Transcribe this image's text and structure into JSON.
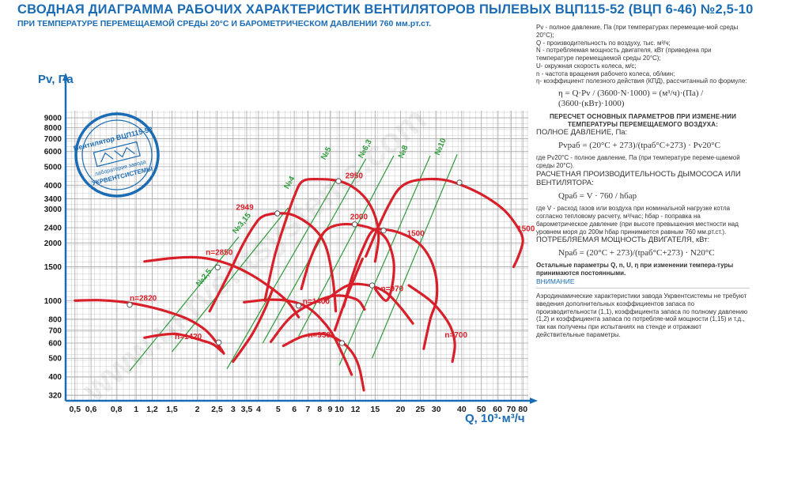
{
  "title": "СВОДНАЯ  ДИАГРАММА РАБОЧИХ ХАРАКТЕРИСТИК ВЕНТИЛЯТОРОВ ПЫЛЕВЫХ ВЦП115-52 (ВЦП 6-46) №2,5-10",
  "subtitle": "ПРИ ТЕМПЕРАТУРЕ ПЕРЕМЕЩАЕМОЙ СРЕДЫ 20°С И БАРОМЕТРИЧЕСКОМ ДАВЛЕНИИ 760 мм.рт.ст.",
  "stamp": {
    "line1": "Вентилятор ВЦП115-52",
    "line2": "лаборатория завода",
    "line3": "УКРВЕНТСИСТЕМЫ"
  },
  "watermark": "www.ukrventsystems.com",
  "chart_data": {
    "type": "line",
    "x_scale": "log",
    "y_scale": "log",
    "xlabel": "Q, 10³·м³/ч",
    "ylabel": "Pv, Па",
    "xlim": [
      0.45,
      85
    ],
    "ylim": [
      300,
      9800
    ],
    "x_ticks": [
      0.5,
      0.6,
      0.8,
      1,
      1.2,
      1.5,
      2,
      2.5,
      3,
      3.5,
      4,
      5,
      6,
      7,
      8,
      9,
      10,
      12,
      15,
      20,
      25,
      30,
      40,
      50,
      60,
      70,
      80
    ],
    "x_tick_labels": [
      "0,5",
      "0,6",
      "0,8",
      "1",
      "1,2",
      "1,5",
      "2",
      "2,5",
      "3",
      "3,5",
      "4",
      "5",
      "6",
      "7",
      "8",
      "9",
      "10",
      "12",
      "15",
      "20",
      "25",
      "30",
      "40",
      "50",
      "60",
      "70",
      "80"
    ],
    "y_ticks": [
      320,
      400,
      500,
      600,
      700,
      800,
      1000,
      1500,
      2000,
      2400,
      3000,
      3400,
      4000,
      5000,
      6000,
      7000,
      8000,
      9000
    ],
    "grid": true,
    "fans": [
      {
        "label": "№2,5",
        "line_start": [
          0.93,
          430
        ],
        "line_end": [
          3.2,
          2150
        ],
        "label_at": [
          2.05,
          1180
        ],
        "curves": [
          {
            "label": "n=2820",
            "label_at": [
              0.93,
              1000
            ],
            "points": [
              [
                0.5,
                1000
              ],
              [
                0.65,
                1005
              ],
              [
                0.85,
                985
              ],
              [
                1.1,
                940
              ],
              [
                1.4,
                880
              ],
              [
                1.8,
                800
              ],
              [
                2.2,
                700
              ],
              [
                2.5,
                600
              ],
              [
                2.7,
                530
              ]
            ]
          },
          {
            "label": "n=1420",
            "label_at": [
              1.55,
              630
            ],
            "points": [
              [
                1.1,
                640
              ],
              [
                1.3,
                660
              ],
              [
                1.55,
                670
              ],
              [
                1.8,
                650
              ],
              [
                2.1,
                620
              ],
              [
                2.4,
                590
              ],
              [
                2.65,
                540
              ]
            ]
          }
        ]
      },
      {
        "label": "№3,15",
        "line_start": [
          1.5,
          540
        ],
        "line_end": [
          5.6,
          3050
        ],
        "label_at": [
          3.1,
          2220
        ],
        "curves": [
          {
            "label": "n=2850",
            "label_at": [
              2.2,
              1730
            ],
            "points": [
              [
                1.1,
                1600
              ],
              [
                1.5,
                1665
              ],
              [
                2.0,
                1680
              ],
              [
                2.6,
                1600
              ],
              [
                3.3,
                1450
              ],
              [
                4.2,
                1250
              ],
              [
                5.5,
                1000
              ],
              [
                6.3,
                820
              ]
            ]
          },
          {
            "label": "2949",
            "label_at": [
              3.1,
              2980
            ],
            "points": [
              [
                2.3,
                880
              ],
              [
                2.8,
                1320
              ],
              [
                3.3,
                1900
              ],
              [
                3.8,
                2450
              ],
              [
                4.2,
                2750
              ],
              [
                5.0,
                2850
              ],
              [
                6.0,
                2780
              ],
              [
                7.5,
                2380
              ],
              [
                8.6,
                1900
              ],
              [
                9.3,
                1280
              ],
              [
                9.6,
                880
              ]
            ]
          }
        ]
      },
      {
        "label": "№4",
        "line_start": [
          2.8,
          440
        ],
        "line_end": [
          9.7,
          4300
        ],
        "label_at": [
          5.6,
          3800
        ],
        "curves": [
          {
            "label": "n=1400",
            "label_at": [
              6.6,
              960
            ],
            "points": [
              [
                3.4,
                980
              ],
              [
                4.5,
                1010
              ],
              [
                5.8,
                990
              ],
              [
                7.2,
                900
              ],
              [
                9.0,
                700
              ],
              [
                10.5,
                510
              ],
              [
                11.5,
                410
              ]
            ]
          },
          {
            "label": "",
            "label_at": [
              0,
              0
            ],
            "points": [
              [
                3.0,
                480
              ],
              [
                3.7,
                660
              ],
              [
                4.3,
                900
              ],
              [
                4.7,
                1150
              ]
            ]
          }
        ]
      },
      {
        "label": "№5",
        "line_start": [
          4.2,
          600
        ],
        "line_end": [
          13.5,
          5500
        ],
        "label_at": [
          8.5,
          5400
        ],
        "curves": [
          {
            "label": "2950",
            "label_at": [
              10.7,
              4350
            ],
            "points": [
              [
                4.3,
                1000
              ],
              [
                4.8,
                1700
              ],
              [
                5.4,
                2550
              ],
              [
                6.0,
                3500
              ],
              [
                6.6,
                4200
              ],
              [
                8.0,
                4300
              ],
              [
                9.8,
                4220
              ],
              [
                11.5,
                3950
              ],
              [
                13.5,
                3400
              ],
              [
                15.0,
                2750
              ],
              [
                15.6,
                2150
              ],
              [
                15.0,
                1600
              ]
            ]
          },
          {
            "label": "n=950",
            "label_at": [
              7.0,
              640
            ],
            "points": [
              [
                5.3,
                580
              ],
              [
                6.6,
                650
              ],
              [
                8.3,
                670
              ],
              [
                10.0,
                620
              ],
              [
                11.5,
                540
              ],
              [
                12.5,
                450
              ],
              [
                13.2,
                340
              ]
            ]
          },
          {
            "label": "",
            "label_at": [
              0,
              0
            ],
            "points": [
              [
                4.6,
                610
              ],
              [
                6.0,
                850
              ],
              [
                9.0,
                1050
              ],
              [
                12.0,
                1020
              ],
              [
                13.3,
                900
              ]
            ]
          }
        ]
      },
      {
        "label": "№6,3",
        "line_start": [
          6.3,
          650
        ],
        "line_end": [
          18.5,
          5700
        ],
        "label_at": [
          13.0,
          5500
        ],
        "curves": [
          {
            "label": "2000",
            "label_at": [
              11.3,
              2650
            ],
            "points": [
              [
                6.5,
                1150
              ],
              [
                7.2,
                1650
              ],
              [
                8.2,
                2200
              ],
              [
                9.4,
                2450
              ],
              [
                11.5,
                2500
              ],
              [
                14.5,
                2370
              ],
              [
                17.0,
                2100
              ],
              [
                18.5,
                1600
              ],
              [
                18.2,
                1200
              ],
              [
                17.0,
                1000
              ],
              [
                15.0,
                1150
              ]
            ]
          },
          {
            "label": "n=970",
            "label_at": [
              16.0,
              1120
            ],
            "points": [
              [
                8.5,
                1000
              ],
              [
                11.0,
                1200
              ],
              [
                14.0,
                1200
              ],
              [
                17.0,
                1100
              ],
              [
                20.0,
                920
              ],
              [
                23.0,
                760
              ]
            ]
          }
        ]
      },
      {
        "label": "№8",
        "line_start": [
          10.0,
          460
        ],
        "line_end": [
          28.0,
          5700
        ],
        "label_at": [
          20.5,
          5500
        ],
        "curves": [
          {
            "label": "1500",
            "label_at": [
              21.5,
              2170
            ],
            "points": [
              [
                10.5,
                930
              ],
              [
                11.6,
                1350
              ],
              [
                13.0,
                1850
              ],
              [
                14.5,
                2300
              ],
              [
                16.5,
                2350
              ],
              [
                20.0,
                2250
              ],
              [
                24.5,
                2000
              ],
              [
                28.0,
                1650
              ],
              [
                30.0,
                1300
              ],
              [
                30.0,
                1000
              ],
              [
                28.0,
                800
              ],
              [
                26.0,
                560
              ]
            ]
          },
          {
            "label": "",
            "label_at": [
              0,
              0
            ],
            "points": [
              [
                9.5,
                700
              ],
              [
                10.7,
                1000
              ],
              [
                12.0,
                1350
              ],
              [
                13.0,
                1650
              ]
            ]
          }
        ]
      },
      {
        "label": "№10",
        "line_start": [
          14.5,
          500
        ],
        "line_end": [
          38.0,
          5800
        ],
        "label_at": [
          31.0,
          5700
        ],
        "curves": [
          {
            "label": "1500",
            "label_at": [
              75.0,
              2300
            ],
            "points": [
              [
                13.5,
                1700
              ],
              [
                15.5,
                2400
              ],
              [
                17.5,
                3150
              ],
              [
                20.0,
                3900
              ],
              [
                24.0,
                4250
              ],
              [
                32.0,
                4280
              ],
              [
                40.0,
                4000
              ],
              [
                52.0,
                3500
              ],
              [
                65.0,
                2950
              ],
              [
                76.0,
                2380
              ],
              [
                80.0,
                2050
              ],
              [
                76.0,
                1700
              ],
              [
                72.0,
                1500
              ]
            ]
          },
          {
            "label": "n=700",
            "label_at": [
              33.0,
              640
            ],
            "points": [
              [
                22.0,
                1200
              ],
              [
                28.0,
                1000
              ],
              [
                33.0,
                820
              ],
              [
                36.0,
                690
              ],
              [
                37.0,
                580
              ],
              [
                36.0,
                480
              ]
            ]
          }
        ]
      }
    ],
    "efficiency_points": [
      [
        0.93,
        950
      ],
      [
        2.55,
        605
      ],
      [
        2.52,
        1490
      ],
      [
        4.95,
        2850
      ],
      [
        6.3,
        940
      ],
      [
        9.9,
        4200
      ],
      [
        10.3,
        600
      ],
      [
        11.9,
        2500
      ],
      [
        14.5,
        1200
      ],
      [
        16.5,
        2320
      ],
      [
        39.0,
        4130
      ]
    ]
  },
  "notes": {
    "defs": [
      "Pv - полное давление, Па (при температурах перемещае-мой среды 20°С);",
      "Q - производительность по воздуху, тыс. м³/ч;",
      "N - потребляемая мощность двигателя, кВт (приведена при температуре перемещаемой среды 20°С);",
      "U- окружная скорость колеса, м/с;",
      "n - частота вращения рабочего колеса, об/мин;",
      "η- коэффициент полезного действия (КПД), рассчитанный по формуле:"
    ],
    "eta_formula": "η = Q·Pv / (3600·N·1000) = (м³/ч)·(Па) / (3600·(кВт)·1000)",
    "recalc_title": "ПЕРЕСЧЕТ ОСНОВНЫХ ПАРАМЕТРОВ ПРИ ИЗМЕНЕ-НИИ ТЕМПЕРАТУРЫ ПЕРЕМЕЩАЕМОГО ВОЗДУХА:",
    "pressure_title": "ПОЛНОЕ ДАВЛЕНИЕ, Па:",
    "pressure_formula": "Pvраб = (20°С + 273)/(tраб°С+273) · Pv20°С",
    "pressure_note": "где Pv20°С - полное давление, Па (при температуре переме-щаемой среды 20°С).",
    "capacity_title": "РАСЧЕТНАЯ ПРОИЗВОДИТЕЛЬНОСТЬ ДЫМОСОСА ИЛИ ВЕНТИЛЯТОРА:",
    "capacity_formula": "Qраб = V · 760 / hбар",
    "capacity_note": "где V - расход газов или воздуха при номинальной нагрузке котла согласно тепловому расчету, м³/час; hбар - поправка на барометрическое давление (при высоте превышения местности над уровнем моря до 200м hбар принимается равным 760 мм.рт.ст.).",
    "power_title": "ПОТРЕБЛЯЕМАЯ МОЩНОСТЬ ДВИГАТЕЛЯ, кВт:",
    "power_formula": "Nраб = (20°С + 273)/(tраб°С+273) · N20°С",
    "other_params": "Остальные параметры Q, n, U, η при изменении темпера-туры принимаются постоянными.",
    "attention": "ВНИМАНИЕ",
    "warning": "Аэродинамические характеристики завода Укрвентсистемы не требуют введения дополнительных коэффициентов запаса по производительности (1,1), коэффициента запаса по полному давлению (1,2) и коэффициента запаса по потребляе-мой мощности (1,15) и т.д., так как получены при испытаниях на стенде и отражают действительные параметры."
  },
  "colors": {
    "curve": "#d8202a",
    "fan_line": "#2e9b3b",
    "axis": "#1b6cb4",
    "grid": "#c8c8c8",
    "dot": "#ffffff"
  }
}
